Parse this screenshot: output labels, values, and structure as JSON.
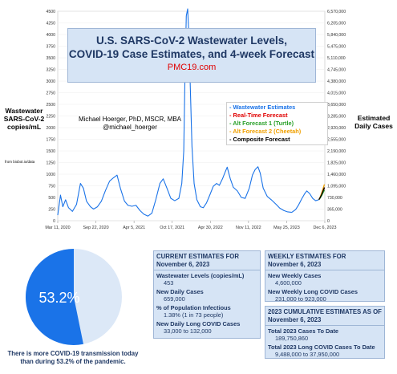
{
  "chart_data": {
    "type": "line",
    "title": "U.S. SARS-CoV-2 Wastewater Levels,",
    "title_line2": "COVID-19 Case Estimates, and 4-week Forecast",
    "subtitle": "PMC19.com",
    "author_name": "Michael Hoerger, PhD, MSCR, MBA",
    "author_handle": "@michael_hoerger",
    "ylabel": [
      "Wastewater",
      "SARS-CoV-2",
      "copies/mL"
    ],
    "ylabel_right": [
      "Estimated",
      "Daily Cases"
    ],
    "source_note": "from biobot.io/data",
    "ylim": [
      0,
      4500
    ],
    "yticks_left": [
      "4500",
      "4250",
      "4000",
      "3750",
      "3500",
      "3250",
      "3000",
      "2750",
      "2500",
      "2250",
      "2000",
      "1750",
      "1500",
      "1250",
      "1000",
      "750",
      "500",
      "250",
      "0"
    ],
    "yticks_right": [
      "6,570,000",
      "6,205,000",
      "5,840,000",
      "5,475,000",
      "5,110,000",
      "4,745,000",
      "4,380,000",
      "4,015,000",
      "3,650,000",
      "3,285,000",
      "2,920,000",
      "2,555,000",
      "2,190,000",
      "1,825,000",
      "1,460,000",
      "1,095,000",
      "730,000",
      "365,000",
      "0"
    ],
    "xticks": [
      {
        "label": "Mar 11, 2020",
        "date": "2020-03-11"
      },
      {
        "label": "Sep 22, 2020",
        "date": "2020-09-22"
      },
      {
        "label": "Apr 5, 2021",
        "date": "2021-04-05"
      },
      {
        "label": "Oct 17, 2021",
        "date": "2021-10-17"
      },
      {
        "label": "Apr 30, 2022",
        "date": "2022-04-30"
      },
      {
        "label": "Nov 11, 2022",
        "date": "2022-11-11"
      },
      {
        "label": "May 25, 2023",
        "date": "2023-05-25"
      },
      {
        "label": "Dec 6, 2023",
        "date": "2023-12-06"
      }
    ],
    "legend": [
      {
        "label": "- Wastewater Estimates",
        "color": "#1a73e8"
      },
      {
        "label": "- Real-Time Forecast",
        "color": "#e00000"
      },
      {
        "label": "- Alt Forecast 1 (Turtle)",
        "color": "#2aa02a"
      },
      {
        "label": "- Alt Forecast 2 (Cheetah)",
        "color": "#f0a000"
      },
      {
        "label": "- Composite Forecast",
        "color": "#000000"
      }
    ],
    "series": [
      {
        "color": "#1a73e8",
        "points": [
          [
            "2020-03-11",
            120
          ],
          [
            "2020-03-25",
            550
          ],
          [
            "2020-04-06",
            300
          ],
          [
            "2020-04-20",
            450
          ],
          [
            "2020-05-05",
            280
          ],
          [
            "2020-05-25",
            200
          ],
          [
            "2020-06-15",
            350
          ],
          [
            "2020-07-05",
            800
          ],
          [
            "2020-07-20",
            700
          ],
          [
            "2020-08-05",
            420
          ],
          [
            "2020-08-25",
            300
          ],
          [
            "2020-09-10",
            250
          ],
          [
            "2020-09-30",
            300
          ],
          [
            "2020-10-20",
            420
          ],
          [
            "2020-11-10",
            650
          ],
          [
            "2020-12-01",
            850
          ],
          [
            "2020-12-20",
            920
          ],
          [
            "2021-01-08",
            980
          ],
          [
            "2021-01-25",
            700
          ],
          [
            "2021-02-15",
            420
          ],
          [
            "2021-03-05",
            330
          ],
          [
            "2021-03-25",
            310
          ],
          [
            "2021-04-15",
            330
          ],
          [
            "2021-05-05",
            220
          ],
          [
            "2021-05-25",
            140
          ],
          [
            "2021-06-15",
            100
          ],
          [
            "2021-07-05",
            160
          ],
          [
            "2021-07-25",
            450
          ],
          [
            "2021-08-15",
            800
          ],
          [
            "2021-09-01",
            900
          ],
          [
            "2021-09-20",
            700
          ],
          [
            "2021-10-10",
            480
          ],
          [
            "2021-10-30",
            430
          ],
          [
            "2021-11-20",
            480
          ],
          [
            "2021-12-05",
            800
          ],
          [
            "2021-12-15",
            1500
          ],
          [
            "2021-12-22",
            3300
          ],
          [
            "2021-12-28",
            4400
          ],
          [
            "2022-01-04",
            4550
          ],
          [
            "2022-01-10",
            4000
          ],
          [
            "2022-01-18",
            2800
          ],
          [
            "2022-01-26",
            1600
          ],
          [
            "2022-02-06",
            800
          ],
          [
            "2022-02-20",
            450
          ],
          [
            "2022-03-10",
            300
          ],
          [
            "2022-03-25",
            280
          ],
          [
            "2022-04-10",
            380
          ],
          [
            "2022-04-28",
            560
          ],
          [
            "2022-05-15",
            740
          ],
          [
            "2022-06-01",
            800
          ],
          [
            "2022-06-15",
            760
          ],
          [
            "2022-07-01",
            900
          ],
          [
            "2022-07-15",
            1050
          ],
          [
            "2022-07-25",
            1150
          ],
          [
            "2022-08-10",
            900
          ],
          [
            "2022-08-25",
            720
          ],
          [
            "2022-09-15",
            640
          ],
          [
            "2022-10-05",
            500
          ],
          [
            "2022-10-25",
            480
          ],
          [
            "2022-11-15",
            700
          ],
          [
            "2022-12-01",
            980
          ],
          [
            "2022-12-15",
            1100
          ],
          [
            "2022-12-29",
            1160
          ],
          [
            "2023-01-10",
            1020
          ],
          [
            "2023-01-25",
            700
          ],
          [
            "2023-02-15",
            520
          ],
          [
            "2023-03-10",
            440
          ],
          [
            "2023-03-30",
            360
          ],
          [
            "2023-04-20",
            270
          ],
          [
            "2023-05-10",
            220
          ],
          [
            "2023-05-30",
            190
          ],
          [
            "2023-06-20",
            180
          ],
          [
            "2023-07-10",
            240
          ],
          [
            "2023-07-25",
            340
          ],
          [
            "2023-08-10",
            470
          ],
          [
            "2023-08-25",
            580
          ],
          [
            "2023-09-05",
            640
          ],
          [
            "2023-09-20",
            580
          ],
          [
            "2023-10-05",
            480
          ],
          [
            "2023-10-20",
            430
          ],
          [
            "2023-11-06",
            453
          ]
        ]
      },
      {
        "color": "#e00000",
        "points": [
          [
            "2023-11-06",
            453
          ],
          [
            "2023-11-13",
            500
          ],
          [
            "2023-11-20",
            560
          ],
          [
            "2023-11-27",
            630
          ],
          [
            "2023-12-04",
            700
          ]
        ]
      },
      {
        "color": "#2aa02a",
        "points": [
          [
            "2023-11-06",
            453
          ],
          [
            "2023-11-13",
            490
          ],
          [
            "2023-11-20",
            540
          ],
          [
            "2023-11-27",
            600
          ],
          [
            "2023-12-04",
            660
          ]
        ]
      },
      {
        "color": "#f0a000",
        "points": [
          [
            "2023-11-06",
            453
          ],
          [
            "2023-11-13",
            520
          ],
          [
            "2023-11-20",
            600
          ],
          [
            "2023-11-27",
            690
          ],
          [
            "2023-12-04",
            780
          ]
        ]
      },
      {
        "color": "#000000",
        "points": [
          [
            "2023-11-06",
            453
          ],
          [
            "2023-11-13",
            505
          ],
          [
            "2023-11-20",
            565
          ],
          [
            "2023-11-27",
            640
          ],
          [
            "2023-12-04",
            715
          ]
        ]
      }
    ]
  },
  "pie": {
    "percent": 53.2,
    "label": "53.2%",
    "color_main": "#1a73e8",
    "color_rest": "#dce8f7",
    "caption_line1": "There is more COVID-19 transmission today",
    "caption_line2": "than during 53.2% of the pandemic."
  },
  "current": {
    "header_line1": "CURRENT ESTIMATES FOR",
    "header_line2": "November 6, 2023",
    "rows": [
      {
        "label": "Wastewater Levels (copies/mL)",
        "value": "453"
      },
      {
        "label": "New Daily Cases",
        "value": "659,000"
      },
      {
        "label": "% of Population Infectious",
        "value": "1.38% (1 in 73 people)"
      },
      {
        "label": "New Daily Long COVID Cases",
        "value": "33,000 to 132,000"
      }
    ]
  },
  "weekly": {
    "header_line1": "WEEKLY ESTIMATES FOR",
    "header_line2": "November 6, 2023",
    "rows": [
      {
        "label": "New Weekly Cases",
        "value": "4,600,000"
      },
      {
        "label": "New Weekly Long COVID Cases",
        "value": "231,000 to 923,000"
      }
    ]
  },
  "cumulative": {
    "header_line1": "2023 CUMULATIVE ESTIMATES AS OF",
    "header_line2": "November 6, 2023",
    "rows": [
      {
        "label": "Total 2023 Cases To Date",
        "value": "189,750,860"
      },
      {
        "label": "Total 2023 Long COVID Cases To Date",
        "value": "9,488,000 to 37,950,000"
      }
    ]
  }
}
